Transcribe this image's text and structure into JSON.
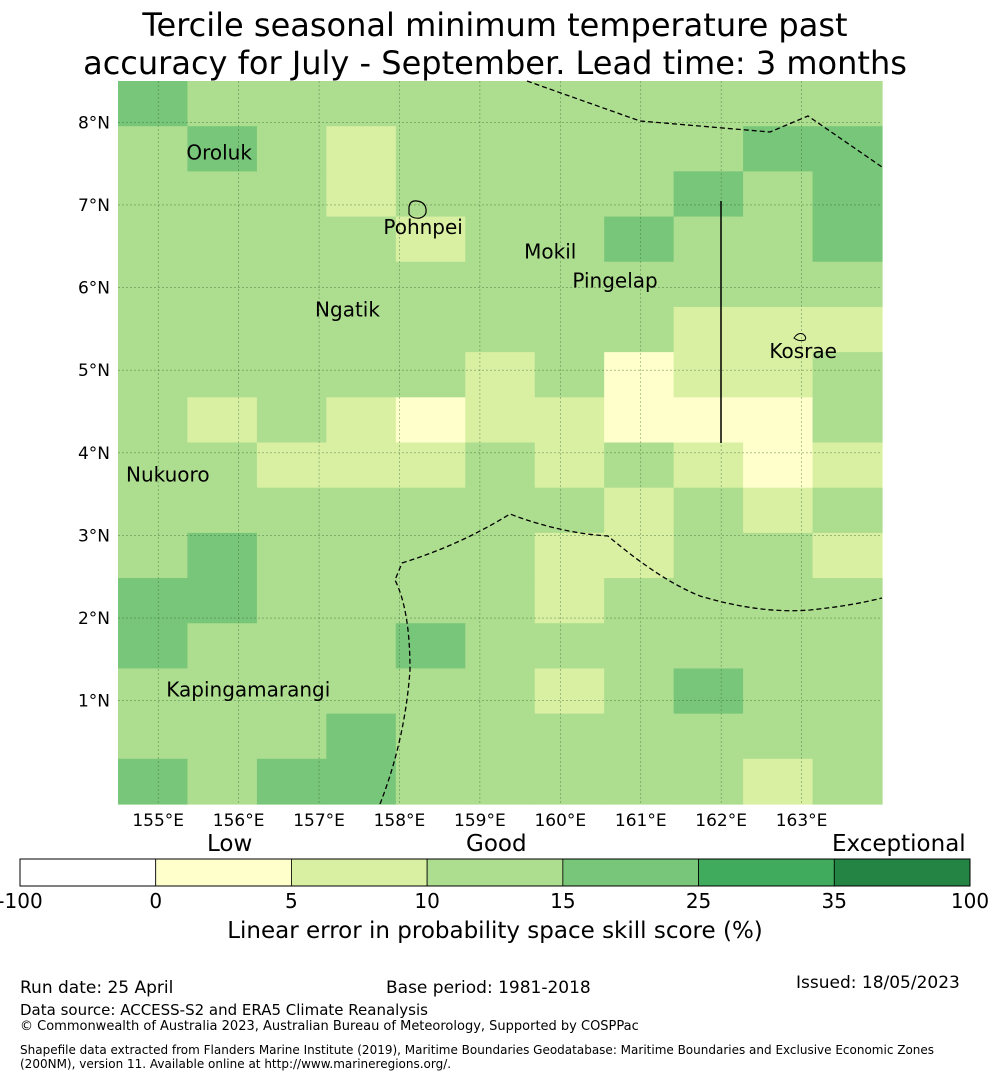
{
  "title": {
    "line1": "Tercile seasonal minimum temperature past",
    "line2": "accuracy for July - September. Lead time: 3 months"
  },
  "map": {
    "lon_range": [
      154.5,
      164.0
    ],
    "lat_range": [
      -0.25,
      8.5
    ],
    "lat_ticks": [
      "8°N",
      "7°N",
      "6°N",
      "5°N",
      "4°N",
      "3°N",
      "2°N",
      "1°N"
    ],
    "lat_values": [
      8,
      7,
      6,
      5,
      4,
      3,
      2,
      1
    ],
    "lon_ticks": [
      "155°E",
      "156°E",
      "157°E",
      "158°E",
      "159°E",
      "160°E",
      "161°E",
      "162°E",
      "163°E"
    ],
    "lon_values": [
      155,
      156,
      157,
      158,
      159,
      160,
      161,
      162,
      163
    ],
    "places": [
      {
        "name": "Oroluk",
        "lon": 155.35,
        "lat": 7.55
      },
      {
        "name": "Pohnpei",
        "lon": 157.8,
        "lat": 6.65
      },
      {
        "name": "Mokil",
        "lon": 159.55,
        "lat": 6.35
      },
      {
        "name": "Pingelap",
        "lon": 160.15,
        "lat": 6.0
      },
      {
        "name": "Ngatik",
        "lon": 156.95,
        "lat": 5.65
      },
      {
        "name": "Kosrae",
        "lon": 162.6,
        "lat": 5.15
      },
      {
        "name": "Nukuoro",
        "lon": 154.6,
        "lat": 3.65
      },
      {
        "name": "Kapingamarangi",
        "lon": 155.1,
        "lat": 1.05
      }
    ],
    "grid_legend_colors": [
      "#ffffff",
      "#ffffcc",
      "#d9f0a3",
      "#addd8e",
      "#78c679",
      "#41ab5d",
      "#238443"
    ],
    "skill_grid_rows_top_to_bottom": [
      [
        4,
        3,
        3,
        3,
        3,
        3,
        3,
        3,
        3,
        3,
        3
      ],
      [
        3,
        4,
        3,
        2,
        3,
        3,
        3,
        3,
        3,
        4,
        4
      ],
      [
        3,
        3,
        3,
        2,
        3,
        3,
        3,
        3,
        4,
        3,
        4
      ],
      [
        3,
        3,
        3,
        3,
        2,
        3,
        3,
        4,
        3,
        3,
        4
      ],
      [
        3,
        3,
        3,
        3,
        3,
        3,
        3,
        3,
        3,
        3,
        3
      ],
      [
        3,
        3,
        3,
        3,
        3,
        3,
        3,
        3,
        2,
        2,
        2
      ],
      [
        3,
        3,
        3,
        3,
        3,
        2,
        3,
        1,
        2,
        2,
        3
      ],
      [
        3,
        2,
        3,
        2,
        1,
        2,
        2,
        1,
        1,
        1,
        3
      ],
      [
        3,
        3,
        2,
        2,
        2,
        3,
        2,
        3,
        2,
        1,
        2
      ],
      [
        3,
        3,
        3,
        3,
        3,
        3,
        3,
        2,
        3,
        2,
        3
      ],
      [
        3,
        4,
        3,
        3,
        3,
        3,
        2,
        2,
        3,
        3,
        2
      ],
      [
        4,
        4,
        3,
        3,
        3,
        3,
        2,
        3,
        3,
        3,
        3
      ],
      [
        4,
        3,
        3,
        3,
        4,
        3,
        3,
        3,
        3,
        3,
        3
      ],
      [
        3,
        3,
        3,
        3,
        3,
        3,
        2,
        3,
        4,
        3,
        3
      ],
      [
        3,
        3,
        3,
        4,
        3,
        3,
        3,
        3,
        3,
        3,
        3
      ],
      [
        4,
        3,
        4,
        4,
        3,
        3,
        3,
        3,
        3,
        2,
        3
      ]
    ]
  },
  "colorbar": {
    "labels_top": [
      "Low",
      "Good",
      "Exceptional"
    ],
    "ticks": [
      "-100",
      "0",
      "5",
      "10",
      "15",
      "25",
      "35",
      "100"
    ],
    "colors": [
      "#ffffff",
      "#ffffcc",
      "#d9f0a3",
      "#addd8e",
      "#78c679",
      "#41ab5d",
      "#238443"
    ],
    "title": "Linear error in probability space skill score (%)"
  },
  "footer": {
    "run_date": "Run date: 25 April",
    "base_period": "Base period: 1981-2018",
    "issued": "Issued: 18/05/2023",
    "data_source": "Data source: ACCESS-S2 and ERA5 Climate Reanalysis",
    "copyright": "© Commonwealth of Australia 2023, Australian Bureau of Meteorology, Supported by COSPPac",
    "shapefile_line1": "Shapefile data extracted from Flanders Marine Institute (2019), Maritime Boundaries Geodatabase: Maritime Boundaries and Exclusive Economic Zones",
    "shapefile_line2": "(200NM), version 11. Available online at http://www.marineregions.org/."
  }
}
